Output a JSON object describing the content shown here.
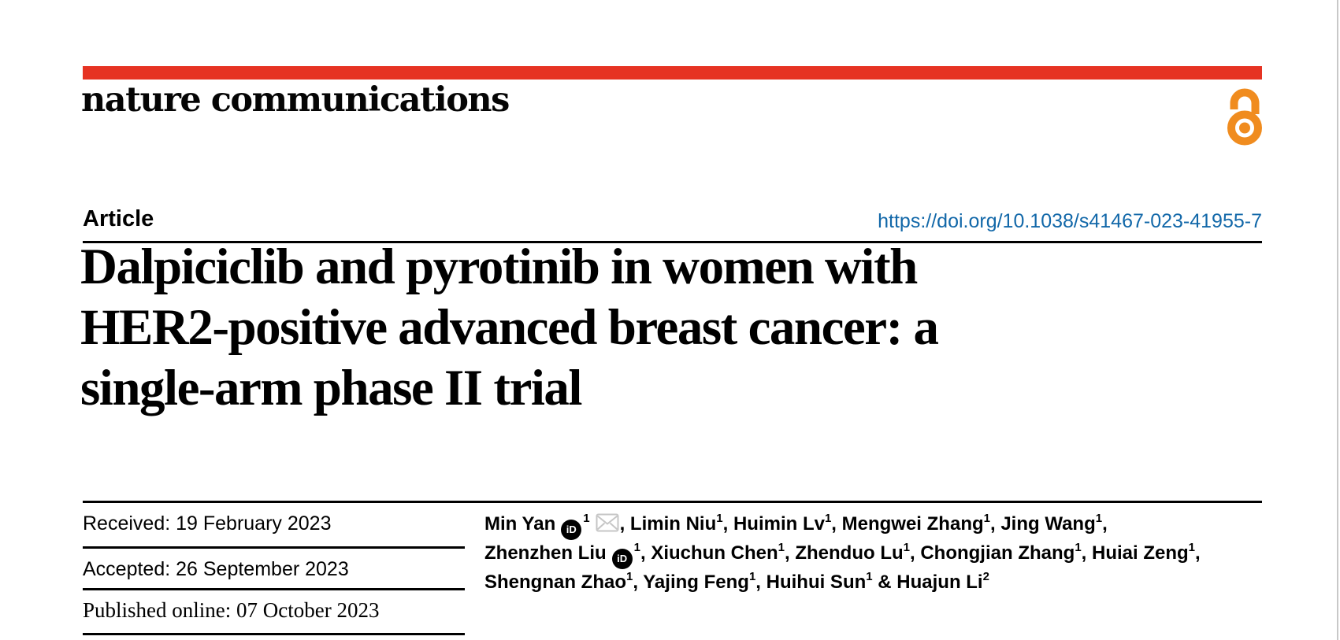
{
  "page": {
    "journal": "nature communications",
    "article_label": "Article",
    "doi": "https://doi.org/10.1038/s41467-023-41955-7",
    "title_lines": [
      "Dalpiciclib and pyrotinib in women with",
      "HER2-positive advanced breast cancer: a",
      "single-arm phase II trial"
    ],
    "dates": [
      {
        "text": "Received: 19 February 2023"
      },
      {
        "text": "Accepted: 26 September 2023"
      },
      {
        "text": "Published online: 07 October 2023"
      }
    ],
    "colors": {
      "accent_red": "#e63323",
      "link_blue": "#1268a9",
      "oa_orange": "#f08c1f",
      "text_black": "#000000",
      "edge_gray": "#c8c8c8"
    }
  },
  "icons": {
    "open_access": "open-padlock",
    "orcid_label": "iD",
    "email": "envelope"
  },
  "authors": {
    "lines": [
      [
        {
          "t": "text",
          "v": "Min Yan"
        },
        {
          "t": "orcid"
        },
        {
          "t": "sup",
          "v": "1"
        },
        {
          "t": "mail"
        },
        {
          "t": "text",
          "v": ", Limin Niu"
        },
        {
          "t": "sup",
          "v": "1"
        },
        {
          "t": "text",
          "v": ", Huimin Lv"
        },
        {
          "t": "sup",
          "v": "1"
        },
        {
          "t": "text",
          "v": ", Mengwei Zhang"
        },
        {
          "t": "sup",
          "v": "1"
        },
        {
          "t": "text",
          "v": ", Jing Wang"
        },
        {
          "t": "sup",
          "v": "1"
        },
        {
          "t": "text",
          "v": ","
        }
      ],
      [
        {
          "t": "text",
          "v": "Zhenzhen Liu"
        },
        {
          "t": "orcid"
        },
        {
          "t": "sup",
          "v": "1"
        },
        {
          "t": "text",
          "v": ", Xiuchun Chen"
        },
        {
          "t": "sup",
          "v": "1"
        },
        {
          "t": "text",
          "v": ", Zhenduo Lu"
        },
        {
          "t": "sup",
          "v": "1"
        },
        {
          "t": "text",
          "v": ", Chongjian Zhang"
        },
        {
          "t": "sup",
          "v": "1"
        },
        {
          "t": "text",
          "v": ", Huiai Zeng"
        },
        {
          "t": "sup",
          "v": "1"
        },
        {
          "t": "text",
          "v": ","
        }
      ],
      [
        {
          "t": "text",
          "v": "Shengnan Zhao"
        },
        {
          "t": "sup",
          "v": "1"
        },
        {
          "t": "text",
          "v": ", Yajing Feng"
        },
        {
          "t": "sup",
          "v": "1"
        },
        {
          "t": "text",
          "v": ", Huihui Sun"
        },
        {
          "t": "sup",
          "v": "1"
        },
        {
          "t": "text",
          "v": " & Huajun Li"
        },
        {
          "t": "sup",
          "v": "2"
        }
      ]
    ]
  }
}
